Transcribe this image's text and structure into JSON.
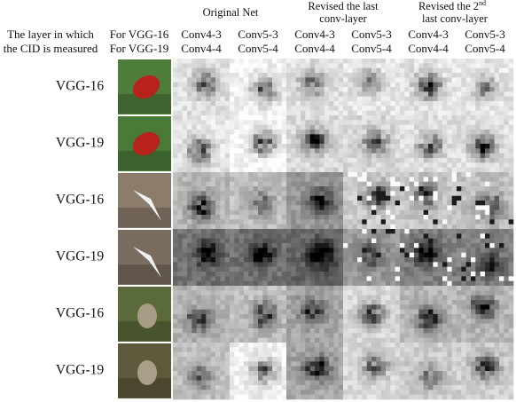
{
  "column_groups": [
    {
      "line1": "Original Net"
    },
    {
      "line1": "Revised the last",
      "line2": "conv-layer"
    },
    {
      "line1": "Revised the 2",
      "superscript": "nd",
      "line2": "last conv-layer"
    }
  ],
  "row_header": [
    "The layer in which",
    "the CID is measured"
  ],
  "model_header": [
    "For VGG-16",
    "For VGG-19"
  ],
  "columns": [
    [
      "Conv4-3",
      "Conv4-4"
    ],
    [
      "Conv5-3",
      "Conv5-4"
    ],
    [
      "Conv4-3",
      "Conv4-4"
    ],
    [
      "Conv5-3",
      "Conv5-4"
    ],
    [
      "Conv4-3",
      "Conv4-4"
    ],
    [
      "Conv5-3",
      "Conv5-4"
    ]
  ],
  "rows": [
    "VGG-16",
    "VGG-19",
    "VGG-16",
    "VGG-19",
    "VGG-16",
    "VGG-19"
  ]
}
